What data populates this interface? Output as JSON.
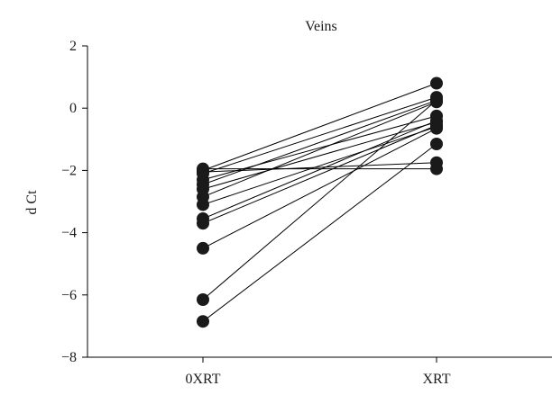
{
  "chart_data": {
    "type": "scatter",
    "title": "Veins",
    "xlabel": "",
    "ylabel": "d Ct",
    "categories": [
      "0XRT",
      "XRT"
    ],
    "ylim": [
      -8,
      2
    ],
    "yticks": [
      2,
      0,
      -2,
      -4,
      -6,
      -8
    ],
    "ytick_labels": [
      "2",
      "0",
      "−2",
      "−4",
      "−6",
      "−8"
    ],
    "grid": false,
    "legend": "none",
    "point_color": "#1a1a1a",
    "line_color": "#000000",
    "pairs": [
      {
        "0XRT": -1.95,
        "XRT": -1.95
      },
      {
        "0XRT": -2.0,
        "XRT": 0.8
      },
      {
        "0XRT": -2.05,
        "XRT": -1.75
      },
      {
        "0XRT": -2.1,
        "XRT": 0.35
      },
      {
        "0XRT": -2.3,
        "XRT": -0.25
      },
      {
        "0XRT": -2.45,
        "XRT": 0.25
      },
      {
        "0XRT": -2.6,
        "XRT": -0.45
      },
      {
        "0XRT": -2.85,
        "XRT": 0.2
      },
      {
        "0XRT": -3.1,
        "XRT": -0.6
      },
      {
        "0XRT": -3.55,
        "XRT": -0.4
      },
      {
        "0XRT": -3.7,
        "XRT": -0.55
      },
      {
        "0XRT": -4.5,
        "XRT": -0.65
      },
      {
        "0XRT": -6.15,
        "XRT": 0.25
      },
      {
        "0XRT": -6.85,
        "XRT": -1.15
      }
    ]
  }
}
